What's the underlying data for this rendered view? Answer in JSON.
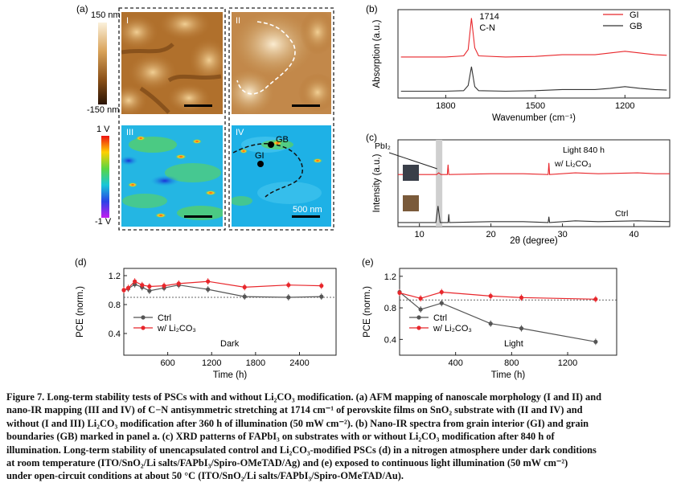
{
  "panel_a": {
    "label": "(a)",
    "colorbar_top": {
      "max": "150 nm",
      "min": "-150 nm"
    },
    "colorbar_bottom": {
      "max": "1 V",
      "min": "-1 V"
    },
    "quadrants": {
      "q1": "I",
      "q2": "II",
      "q3": "III",
      "q4": "IV"
    },
    "markers": {
      "gb": "GB",
      "gi": "GI"
    },
    "scale_bar": "500 nm"
  },
  "chart_data": [
    {
      "panel": "(b)",
      "type": "line",
      "xlabel": "Wavenumber (cm⁻¹)",
      "ylabel": "Absorption (a.u.)",
      "xlim": [
        1960,
        1050
      ],
      "x_ticks": [
        "1800",
        "1500",
        "1200"
      ],
      "annotation": [
        "1714",
        "C-N"
      ],
      "series": [
        {
          "name": "GI",
          "color": "#e8262b",
          "x": [
            1950,
            1800,
            1740,
            1725,
            1714,
            1703,
            1690,
            1600,
            1500,
            1410,
            1300,
            1250,
            1200,
            1150,
            1100,
            1060
          ],
          "y": [
            0.62,
            0.62,
            0.64,
            0.75,
            1.3,
            0.78,
            0.64,
            0.62,
            0.63,
            0.66,
            0.66,
            0.69,
            0.72,
            0.69,
            0.66,
            0.65
          ]
        },
        {
          "name": "GB",
          "color": "#333333",
          "x": [
            1950,
            1800,
            1740,
            1725,
            1714,
            1703,
            1690,
            1600,
            1500,
            1410,
            1300,
            1250,
            1200,
            1150,
            1100,
            1060
          ],
          "y": [
            0.02,
            0.02,
            0.03,
            0.12,
            0.45,
            0.1,
            0.03,
            0.02,
            0.03,
            0.05,
            0.05,
            0.07,
            0.1,
            0.07,
            0.05,
            0.04
          ]
        }
      ]
    },
    {
      "panel": "(c)",
      "type": "line",
      "xlabel": "2θ (degree)",
      "ylabel": "Intensity (a.u.)",
      "xlim": [
        7,
        45
      ],
      "x_ticks": [
        "10",
        "20",
        "30",
        "40"
      ],
      "annotations": [
        "PbI₂",
        "Light 840 h"
      ],
      "series": [
        {
          "name": "w/ Li₂CO₃",
          "color": "#e8262b",
          "x": [
            7,
            12.4,
            12.7,
            13.0,
            13.9,
            14.0,
            14.1,
            20,
            24.5,
            28.0,
            28.1,
            28.2,
            31.8,
            35,
            40.5,
            43,
            45
          ],
          "y": [
            0.58,
            0.58,
            0.6,
            0.58,
            0.58,
            0.7,
            0.58,
            0.59,
            0.59,
            0.58,
            0.72,
            0.58,
            0.6,
            0.59,
            0.6,
            0.59,
            0.59
          ]
        },
        {
          "name": "Ctrl",
          "color": "#333333",
          "x": [
            7,
            12.3,
            12.6,
            12.9,
            13.2,
            14.0,
            14.1,
            14.2,
            20,
            24.5,
            28.0,
            28.1,
            28.2,
            31.8,
            35,
            40.5,
            45
          ],
          "y": [
            0.0,
            0.0,
            0.2,
            0.0,
            0.0,
            0.0,
            0.1,
            0.0,
            0.01,
            0.01,
            0.0,
            0.07,
            0.0,
            0.02,
            0.01,
            0.02,
            0.01
          ]
        }
      ]
    },
    {
      "panel": "(d)",
      "type": "line",
      "xlabel": "Time (h)",
      "ylabel": "PCE (norm.)",
      "xlim": [
        0,
        2900
      ],
      "ylim": [
        0.1,
        1.3
      ],
      "x_ticks": [
        600,
        1200,
        1800,
        2400
      ],
      "y_ticks": [
        0.4,
        0.8,
        1.2
      ],
      "reference_line": 0.9,
      "annotation": "Dark",
      "series": [
        {
          "name": "Ctrl",
          "color": "#555555",
          "x": [
            0,
            60,
            150,
            250,
            350,
            550,
            750,
            1150,
            1650,
            2250,
            2700
          ],
          "y": [
            1.0,
            1.02,
            1.08,
            1.04,
            0.99,
            1.03,
            1.07,
            1.01,
            0.91,
            0.9,
            0.91
          ]
        },
        {
          "name": "w/ Li₂CO₃",
          "color": "#e8262b",
          "x": [
            0,
            60,
            150,
            250,
            350,
            550,
            750,
            1150,
            1650,
            2250,
            2700
          ],
          "y": [
            1.0,
            1.03,
            1.12,
            1.07,
            1.05,
            1.06,
            1.09,
            1.12,
            1.04,
            1.07,
            1.06
          ]
        }
      ]
    },
    {
      "panel": "(e)",
      "type": "line",
      "xlabel": "Time (h)",
      "ylabel": "PCE (norm.)",
      "xlim": [
        0,
        1550
      ],
      "ylim": [
        0.2,
        1.3
      ],
      "x_ticks": [
        400,
        800,
        1200
      ],
      "y_ticks": [
        0.4,
        0.8,
        1.2
      ],
      "reference_line": 0.9,
      "annotation": "Light",
      "series": [
        {
          "name": "Ctrl",
          "color": "#555555",
          "x": [
            0,
            150,
            300,
            650,
            870,
            1400
          ],
          "y": [
            1.0,
            0.78,
            0.86,
            0.6,
            0.54,
            0.37
          ]
        },
        {
          "name": "w/ Li₂CO₃",
          "color": "#e8262b",
          "x": [
            0,
            150,
            300,
            650,
            870,
            1400
          ],
          "y": [
            0.99,
            0.92,
            1.0,
            0.95,
            0.93,
            0.91
          ]
        }
      ]
    }
  ],
  "caption": {
    "lines": [
      "Figure 7. Long-term stability tests of PSCs with and without Li₂CO₃ modification. (a) AFM mapping of nanoscale morphology (I and II) and",
      "nano-IR mapping (III and IV) of C−N antisymmetric stretching at 1714 cm⁻¹ of perovskite films on SnO₂ substrate with (II and IV) and",
      "without (I and III) Li₂CO₃ modification after 360 h of illumination (50 mW cm⁻²). (b) Nano-IR spectra from grain interior (GI) and grain",
      "boundaries (GB) marked in panel a. (c) XRD patterns of FAPbI₃ on substrates with or without Li₂CO₃ modification after 840 h of",
      "illumination. Long-term stability of unencapsulated control and Li₂CO₃-modified PSCs (d) in a nitrogen atmosphere under dark conditions",
      "at room temperature (ITO/SnO₂/Li salts/FAPbI₃/Spiro-OMeTAD/Ag) and (e) exposed to continuous light illumination (50 mW cm⁻²)",
      "under open-circuit conditions at about 50 °C (ITO/SnO₂/Li salts/FAPbI₃/Spiro-OMeTAD/Au)."
    ]
  }
}
